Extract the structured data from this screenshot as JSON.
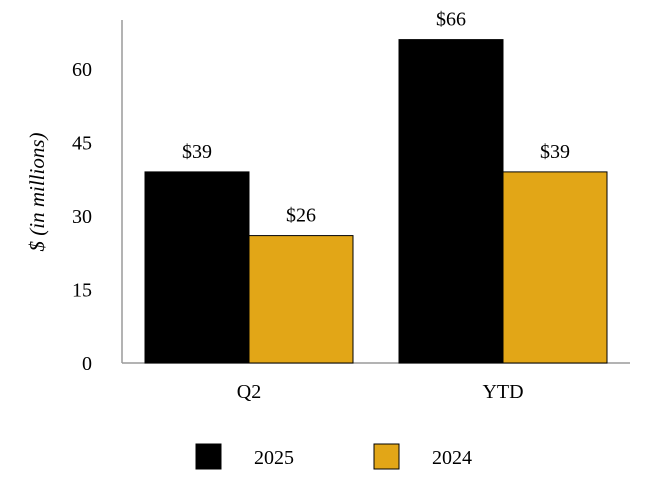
{
  "chart_data": {
    "type": "bar",
    "title": "",
    "xlabel": "",
    "ylabel": "$ (in millions)",
    "ylim": [
      0,
      70
    ],
    "yticks": [
      0,
      15,
      30,
      45,
      60
    ],
    "grid": false,
    "legend_position": "bottom-center",
    "categories": [
      "Q2",
      "YTD"
    ],
    "series": [
      {
        "name": "2025",
        "color": "#000000",
        "values": [
          39,
          66
        ],
        "labels": [
          "$39",
          "$66"
        ]
      },
      {
        "name": "2024",
        "color": "#E2A617",
        "values": [
          26,
          39
        ],
        "labels": [
          "$26",
          "$39"
        ]
      }
    ]
  }
}
